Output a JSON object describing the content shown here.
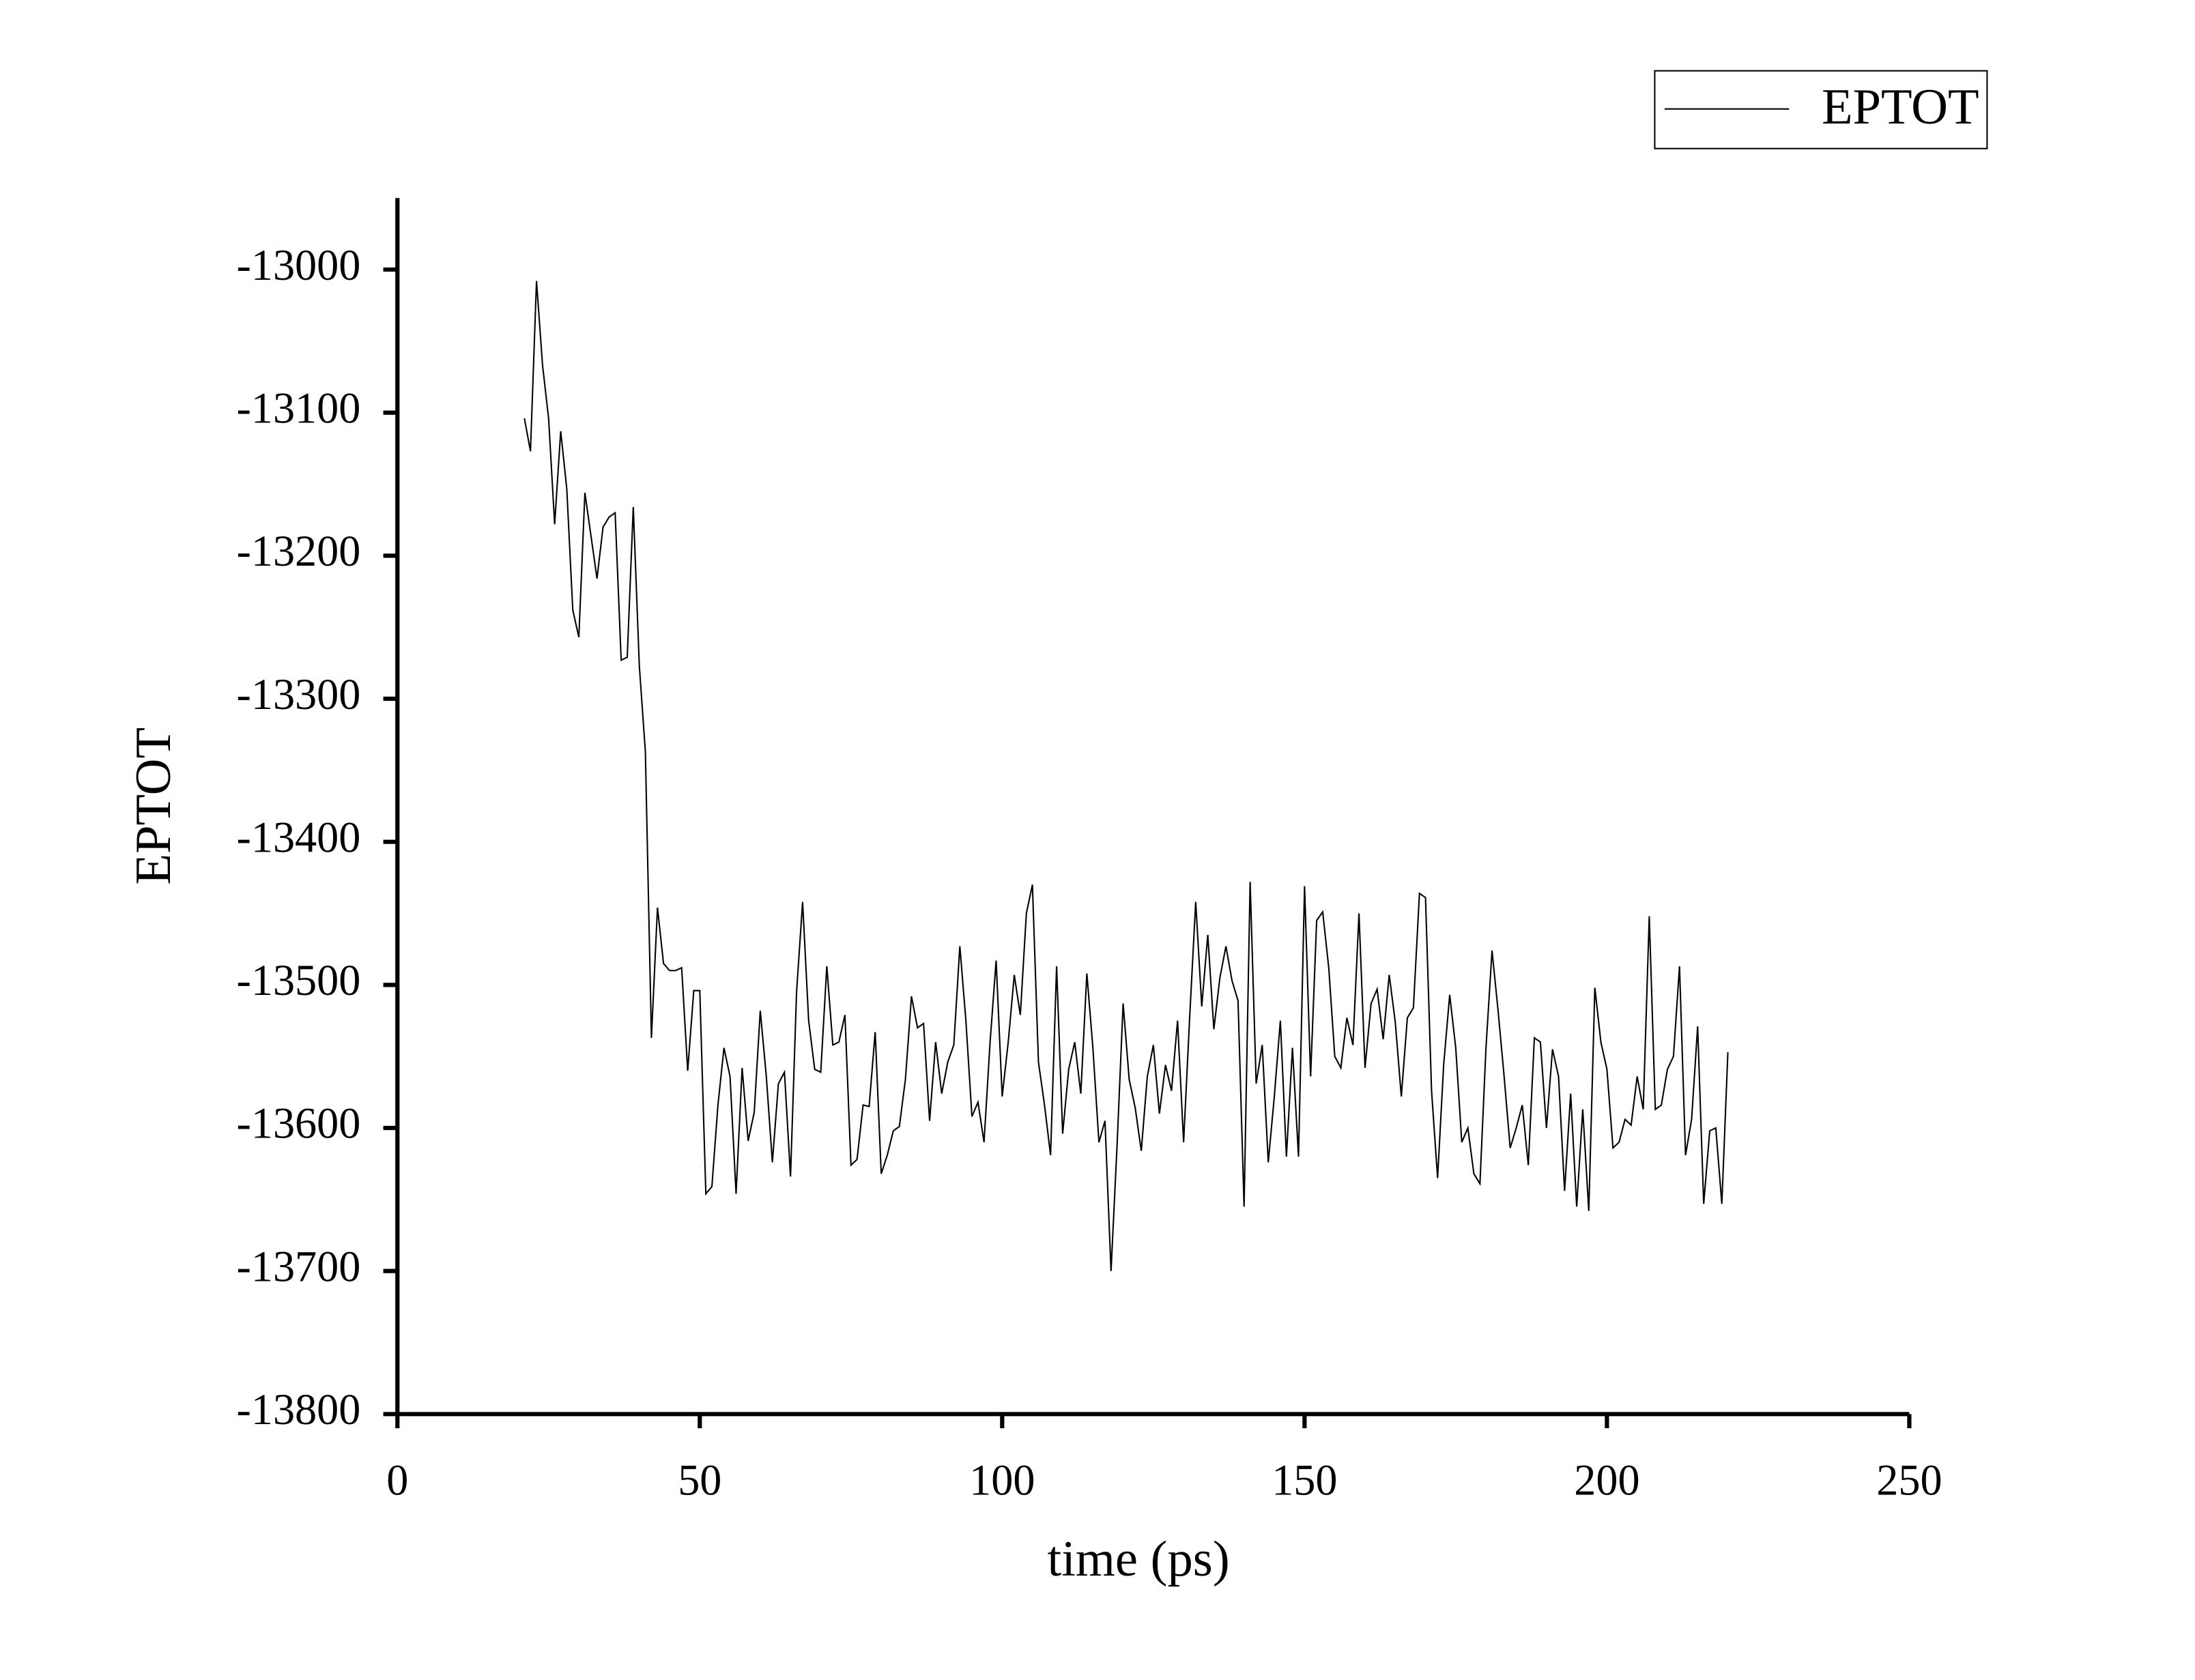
{
  "chart_data": {
    "type": "line",
    "xlabel": "time (ps)",
    "ylabel": "EPTOT",
    "x": [
      21,
      22,
      23,
      24,
      25,
      26,
      27,
      28,
      29,
      30,
      31,
      32,
      33,
      34,
      35,
      36,
      37,
      38,
      39,
      40,
      41,
      42,
      43,
      44,
      45,
      46,
      47,
      48,
      49,
      50,
      51,
      52,
      53,
      54,
      55,
      56,
      57,
      58,
      59,
      60,
      61,
      62,
      63,
      64,
      65,
      66,
      67,
      68,
      69,
      70,
      71,
      72,
      73,
      74,
      75,
      76,
      77,
      78,
      79,
      80,
      81,
      82,
      83,
      84,
      85,
      86,
      87,
      88,
      89,
      90,
      91,
      92,
      93,
      94,
      95,
      96,
      97,
      98,
      99,
      100,
      101,
      102,
      103,
      104,
      105,
      106,
      107,
      108,
      109,
      110,
      111,
      112,
      113,
      114,
      115,
      116,
      117,
      118,
      119,
      120,
      121,
      122,
      123,
      124,
      125,
      126,
      127,
      128,
      129,
      130,
      131,
      132,
      133,
      134,
      135,
      136,
      137,
      138,
      139,
      140,
      141,
      142,
      143,
      144,
      145,
      146,
      147,
      148,
      149,
      150,
      151,
      152,
      153,
      154,
      155,
      156,
      157,
      158,
      159,
      160,
      161,
      162,
      163,
      164,
      165,
      166,
      167,
      168,
      169,
      170,
      171,
      172,
      173,
      174,
      175,
      176,
      177,
      178,
      179,
      180,
      181,
      182,
      183,
      184,
      185,
      186,
      187,
      188,
      189,
      190,
      191,
      192,
      193,
      194,
      195,
      196,
      197,
      198,
      199,
      200,
      201,
      202,
      203,
      204,
      205,
      206,
      207,
      208,
      209,
      210,
      211,
      212,
      213,
      214,
      215,
      216,
      217,
      218,
      219,
      220
    ],
    "series": [
      {
        "name": "EPTOT",
        "color": "#000000",
        "values": [
          -13104,
          -13127,
          -13008,
          -13067,
          -13104,
          -13178,
          -13113,
          -13153,
          -13238,
          -13257,
          -13156,
          -13186,
          -13216,
          -13180,
          -13173,
          -13170,
          -13273,
          -13271,
          -13166,
          -13277,
          -13337,
          -13537,
          -13446,
          -13485,
          -13490,
          -13490,
          -13488,
          -13560,
          -13504,
          -13504,
          -13646,
          -13641,
          -13584,
          -13544,
          -13564,
          -13646,
          -13558,
          -13609,
          -13589,
          -13518,
          -13564,
          -13624,
          -13569,
          -13561,
          -13634,
          -13505,
          -13442,
          -13525,
          -13559,
          -13561,
          -13487,
          -13542,
          -13540,
          -13521,
          -13626,
          -13622,
          -13584,
          -13585,
          -13533,
          -13632,
          -13619,
          -13602,
          -13599,
          -13566,
          -13508,
          -13530,
          -13527,
          -13595,
          -13540,
          -13576,
          -13554,
          -13542,
          -13473,
          -13525,
          -13592,
          -13582,
          -13610,
          -13540,
          -13483,
          -13578,
          -13540,
          -13493,
          -13521,
          -13450,
          -13430,
          -13554,
          -13584,
          -13619,
          -13487,
          -13604,
          -13559,
          -13540,
          -13576,
          -13492,
          -13544,
          -13610,
          -13595,
          -13700,
          -13612,
          -13513,
          -13566,
          -13586,
          -13616,
          -13564,
          -13542,
          -13590,
          -13556,
          -13574,
          -13525,
          -13610,
          -13523,
          -13442,
          -13515,
          -13465,
          -13531,
          -13495,
          -13473,
          -13497,
          -13511,
          -13655,
          -13428,
          -13569,
          -13542,
          -13624,
          -13578,
          -13525,
          -13620,
          -13544,
          -13620,
          -13431,
          -13564,
          -13455,
          -13449,
          -13488,
          -13550,
          -13558,
          -13523,
          -13542,
          -13450,
          -13558,
          -13513,
          -13503,
          -13538,
          -13493,
          -13526,
          -13578,
          -13523,
          -13516,
          -13436,
          -13439,
          -13574,
          -13635,
          -13556,
          -13507,
          -13544,
          -13610,
          -13600,
          -13632,
          -13639,
          -13544,
          -13476,
          -13518,
          -13564,
          -13614,
          -13600,
          -13584,
          -13626,
          -13537,
          -13540,
          -13600,
          -13545,
          -13564,
          -13644,
          -13576,
          -13655,
          -13587,
          -13658,
          -13502,
          -13540,
          -13559,
          -13614,
          -13610,
          -13594,
          -13598,
          -13564,
          -13587,
          -13452,
          -13587,
          -13584,
          -13559,
          -13550,
          -13487,
          -13619,
          -13594,
          -13529,
          -13653,
          -13602,
          -13600,
          -13653,
          -13547
        ]
      }
    ],
    "xlim": [
      0,
      250
    ],
    "xticks": [
      0,
      50,
      100,
      150,
      200,
      250
    ],
    "ylim": [
      -13800,
      -12950
    ],
    "yticks": [
      -13800,
      -13700,
      -13600,
      -13500,
      -13400,
      -13300,
      -13200,
      -13100,
      -13000
    ],
    "legend": "top-right"
  }
}
